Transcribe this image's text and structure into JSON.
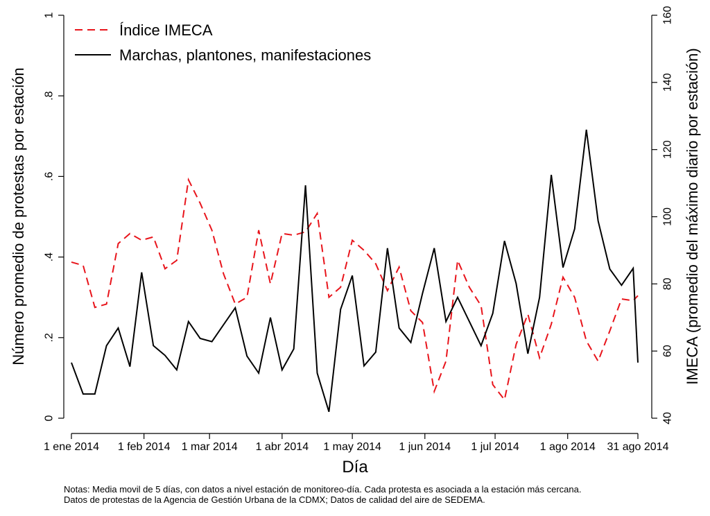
{
  "chart_data": {
    "type": "line",
    "xlabel": "Día",
    "ylabel_left": "Número promedio de protestas por estación",
    "ylabel_right": "IMECA (promedio del máximo diario por estación)",
    "x_tick_labels": [
      "1 ene 2014",
      "1 feb 2014",
      "1 mar 2014",
      "1 abr 2014",
      "1 may 2014",
      "1 jun 2014",
      "1 jul 2014",
      "1 ago 2014",
      "31 ago 2014"
    ],
    "x_tick_days": [
      0,
      31,
      59,
      90,
      120,
      151,
      181,
      212,
      242
    ],
    "x_range": [
      0,
      242
    ],
    "ylim_left": [
      0,
      1
    ],
    "yticks_left": [
      0,
      0.2,
      0.4,
      0.6,
      0.8,
      1
    ],
    "ytick_labels_left": [
      "0",
      ".2",
      ".4",
      ".6",
      ".8",
      "1"
    ],
    "ylim_right": [
      40,
      160
    ],
    "yticks_right": [
      40,
      60,
      80,
      100,
      120,
      140,
      160
    ],
    "ytick_labels_right": [
      "40",
      "60",
      "80",
      "100",
      "120",
      "140",
      "160"
    ],
    "series": [
      {
        "name": "Índice IMECA",
        "axis": "right",
        "color": "#e8141b",
        "style": "dashed",
        "x": [
          0,
          5,
          10,
          15,
          20,
          25,
          30,
          35,
          40,
          45,
          50,
          55,
          60,
          65,
          70,
          75,
          80,
          85,
          90,
          95,
          100,
          105,
          110,
          115,
          120,
          125,
          130,
          135,
          140,
          145,
          150,
          155,
          160,
          165,
          170,
          175,
          180,
          185,
          190,
          195,
          200,
          205,
          210,
          215,
          220,
          225,
          230,
          235,
          240,
          242
        ],
        "values": [
          86.5,
          85.5,
          73,
          74,
          92,
          95,
          93,
          94,
          84.5,
          87,
          111,
          104,
          96,
          83,
          74,
          76,
          96,
          80,
          95,
          94.5,
          95.5,
          101,
          76,
          79,
          93,
          90,
          86,
          78,
          85,
          72,
          68.5,
          48,
          57,
          87,
          79,
          73.5,
          50,
          45.5,
          62,
          71,
          58,
          68,
          82,
          76,
          63,
          57,
          66,
          75.5,
          75,
          76.5
        ]
      },
      {
        "name": "Marchas, plantones, manifestaciones",
        "axis": "left",
        "color": "#000000",
        "style": "solid",
        "x": [
          0,
          5,
          10,
          15,
          20,
          25,
          30,
          35,
          40,
          45,
          50,
          55,
          60,
          65,
          70,
          75,
          80,
          85,
          90,
          95,
          100,
          105,
          110,
          115,
          120,
          125,
          130,
          135,
          140,
          145,
          150,
          155,
          160,
          165,
          170,
          175,
          180,
          185,
          190,
          195,
          200,
          205,
          210,
          215,
          220,
          225,
          230,
          235,
          240,
          242
        ],
        "values": [
          0.138,
          0.06,
          0.06,
          0.18,
          0.224,
          0.128,
          0.362,
          0.18,
          0.156,
          0.12,
          0.24,
          0.198,
          0.19,
          0.232,
          0.274,
          0.154,
          0.112,
          0.25,
          0.12,
          0.172,
          0.578,
          0.112,
          0.016,
          0.27,
          0.354,
          0.13,
          0.164,
          0.422,
          0.224,
          0.188,
          0.31,
          0.422,
          0.24,
          0.3,
          0.24,
          0.18,
          0.26,
          0.44,
          0.334,
          0.16,
          0.3,
          0.604,
          0.374,
          0.47,
          0.716,
          0.49,
          0.37,
          0.33,
          0.372,
          0.138
        ]
      }
    ],
    "legend_position": "top-left",
    "grid": false
  },
  "notes": {
    "line1": "Notas: Media movil de 5 días, con datos a nivel estación de monitoreo-día. Cada protesta es asociada a la estación más cercana.",
    "line2": "Datos de protestas de la Agencia de Gestión Urbana de la CDMX; Datos de calidad del aire de SEDEMA."
  }
}
